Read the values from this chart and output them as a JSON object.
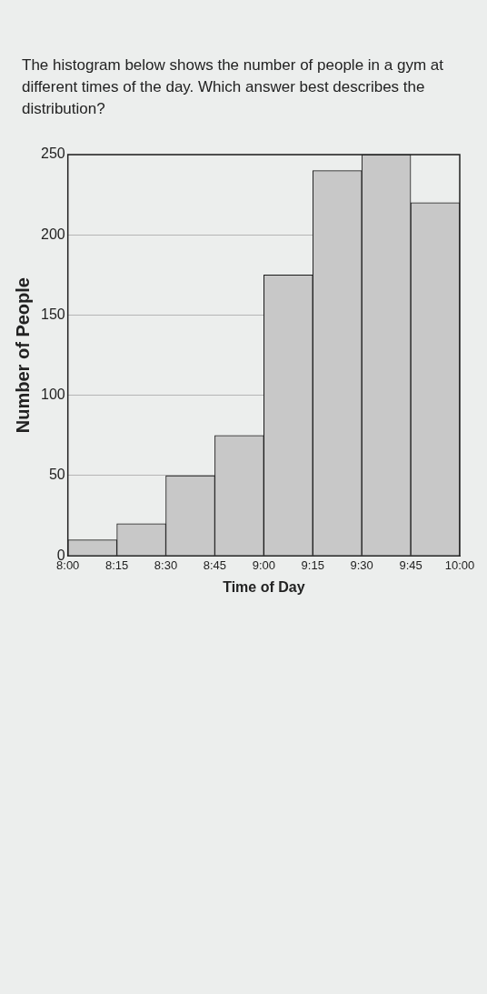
{
  "chart_data": {
    "type": "histogram",
    "title": "The histogram below shows the number of people in a gym at different times of the day. Which answer best describes the distribution?",
    "xlabel": "Time of Day",
    "ylabel": "Number of People",
    "bins": [
      8,
      8.25,
      8.5,
      8.75,
      9,
      9.25,
      9.5,
      9.75,
      10
    ],
    "values": [
      10,
      20,
      50,
      75,
      175,
      240,
      250,
      220
    ],
    "color": "#c8c8c8",
    "xlim": [
      8,
      10
    ],
    "xticks": [
      {
        "value": 8,
        "label": "8:00"
      },
      {
        "value": 8.25,
        "label": "8:15"
      },
      {
        "value": 8.5,
        "label": "8:30"
      },
      {
        "value": 8.75,
        "label": "8:45"
      },
      {
        "value": 9,
        "label": "9:00"
      },
      {
        "value": 9.25,
        "label": "9:15"
      },
      {
        "value": 9.5,
        "label": "9:30"
      },
      {
        "value": 9.75,
        "label": "9:45"
      },
      {
        "value": 10,
        "label": "10:00"
      }
    ],
    "ylim": [
      0,
      250
    ],
    "yticks": [
      0,
      50,
      100,
      150,
      200,
      250
    ],
    "grid": "y",
    "legend": false
  }
}
